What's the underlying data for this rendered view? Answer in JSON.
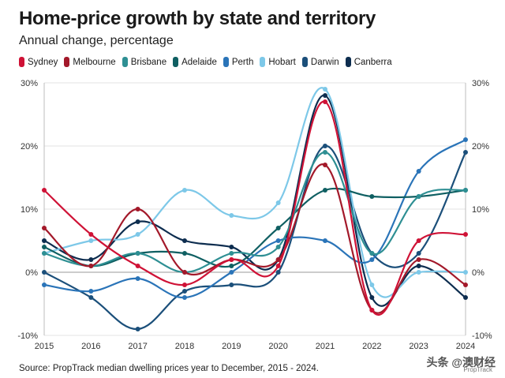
{
  "title": "Home-price growth by state and territory",
  "subtitle": "Annual change, percentage",
  "source": "Source: PropTrack median dwelling prices year to December, 2015 - 2024.",
  "watermark": "头条 @澳财经",
  "watermark_sub": "PropTrack",
  "chart_data": {
    "type": "line",
    "x": [
      2015,
      2016,
      2017,
      2018,
      2019,
      2020,
      2021,
      2022,
      2023,
      2024
    ],
    "xlabel": "",
    "ylabel": "",
    "ylim": [
      -10,
      30
    ],
    "yticks": [
      -10,
      0,
      10,
      20,
      30
    ],
    "ytick_labels": [
      "-10%",
      "0%",
      "10%",
      "20%",
      "30%"
    ],
    "grid": true,
    "legend_position": "top",
    "series": [
      {
        "name": "Sydney",
        "color": "#cf1236",
        "values": [
          13,
          6,
          1,
          -2,
          2,
          1,
          27,
          -6,
          5,
          6
        ]
      },
      {
        "name": "Melbourne",
        "color": "#a3192a",
        "values": [
          7,
          1,
          10,
          0,
          2,
          2,
          17,
          -6,
          2,
          -2
        ]
      },
      {
        "name": "Brisbane",
        "color": "#2e8f93",
        "values": [
          3,
          1,
          3,
          0,
          3,
          4,
          19,
          3,
          12,
          13
        ]
      },
      {
        "name": "Adelaide",
        "color": "#0f5f62",
        "values": [
          4,
          1,
          3,
          3,
          1,
          7,
          13,
          12,
          12,
          13
        ]
      },
      {
        "name": "Perth",
        "color": "#2a74b8",
        "values": [
          -2,
          -3,
          -1,
          -4,
          0,
          5,
          5,
          2,
          16,
          21
        ]
      },
      {
        "name": "Hobart",
        "color": "#7dc8e8",
        "values": [
          3,
          5,
          6,
          13,
          9,
          11,
          29,
          -2,
          0,
          0
        ]
      },
      {
        "name": "Darwin",
        "color": "#1b4f7a",
        "values": [
          0,
          -4,
          -9,
          -3,
          -2,
          0,
          20,
          3,
          3,
          19
        ]
      },
      {
        "name": "Canberra",
        "color": "#0d2d4f",
        "values": [
          5,
          2,
          8,
          5,
          4,
          2,
          28,
          -4,
          1,
          -4
        ]
      }
    ]
  }
}
